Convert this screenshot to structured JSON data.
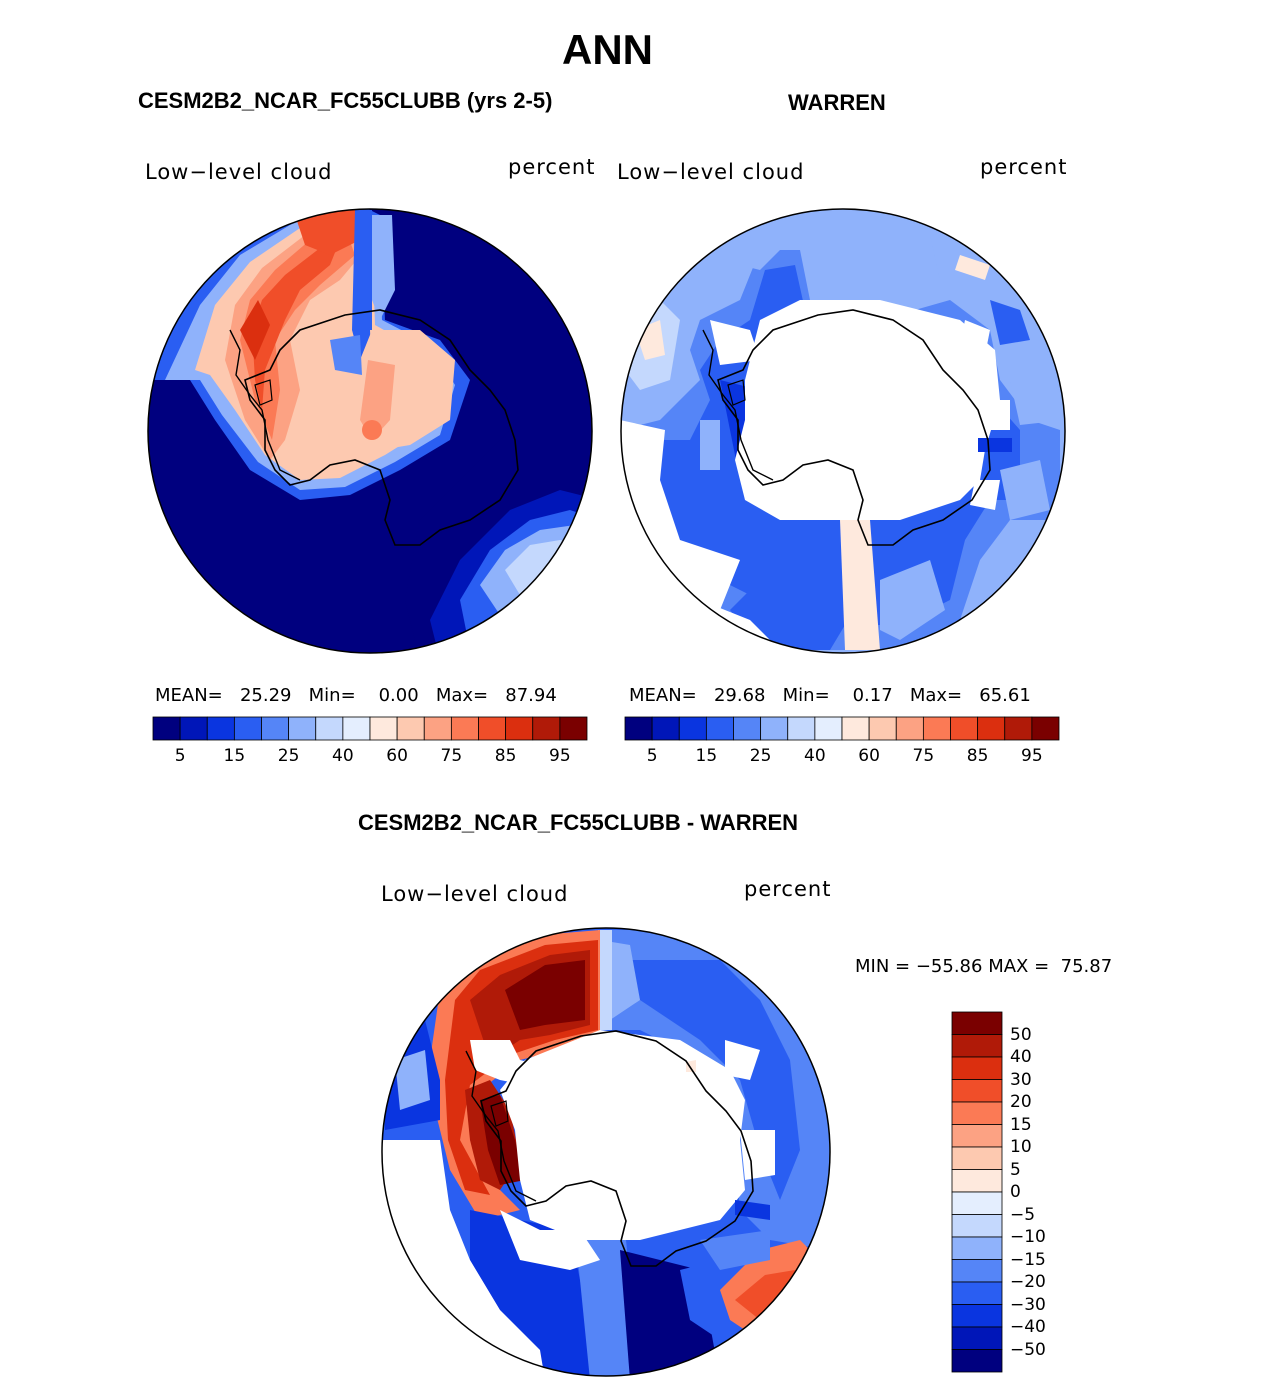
{
  "title": "ANN",
  "panels": [
    {
      "id": "model",
      "title": "CESM2B2_NCAR_FC55CLUBB (yrs 2-5)",
      "variable": "Low−level cloud",
      "units": "percent",
      "stats": {
        "mean_label": "MEAN=",
        "mean": "25.29",
        "min_label": "Min=",
        "min": "0.00",
        "max_label": "Max=",
        "max": "87.94"
      },
      "colorbar_ticks": [
        "5",
        "15",
        "25",
        "40",
        "60",
        "75",
        "85",
        "95"
      ]
    },
    {
      "id": "obs",
      "title": "WARREN",
      "variable": "Low−level cloud",
      "units": "percent",
      "stats": {
        "mean_label": "MEAN=",
        "mean": "29.68",
        "min_label": "Min=",
        "min": "0.17",
        "max_label": "Max=",
        "max": "65.61"
      },
      "colorbar_ticks": [
        "5",
        "15",
        "25",
        "40",
        "60",
        "75",
        "85",
        "95"
      ]
    },
    {
      "id": "diff",
      "title": "CESM2B2_NCAR_FC55CLUBB - WARREN",
      "variable": "Low−level cloud",
      "units": "percent",
      "stats": {
        "min_label": "MIN =",
        "min": "−55.86",
        "max_label": "MAX =",
        "max": "75.87"
      },
      "colorbar_ticks": [
        "50",
        "40",
        "30",
        "20",
        "15",
        "10",
        "5",
        "0",
        "−5",
        "−10",
        "−15",
        "−20",
        "−30",
        "−40",
        "−50"
      ]
    }
  ],
  "colors": {
    "seq_palette": [
      "#00007f",
      "#0016b8",
      "#0a35e0",
      "#2a5ef2",
      "#5585f7",
      "#8fb2fb",
      "#c4d8fd",
      "#e4eefe",
      "#fee9dd",
      "#fdc9b0",
      "#fca283",
      "#fb7a55",
      "#f04e29",
      "#db2f0f",
      "#b01a08",
      "#7a0000"
    ],
    "diff_palette": [
      "#7a0000",
      "#b01a08",
      "#db2f0f",
      "#f04e29",
      "#fb7a55",
      "#fca283",
      "#fdc9b0",
      "#fee9dd",
      "#e4eefe",
      "#c4d8fd",
      "#8fb2fb",
      "#5585f7",
      "#2a5ef2",
      "#0a35e0",
      "#0016b8",
      "#00007f"
    ]
  }
}
